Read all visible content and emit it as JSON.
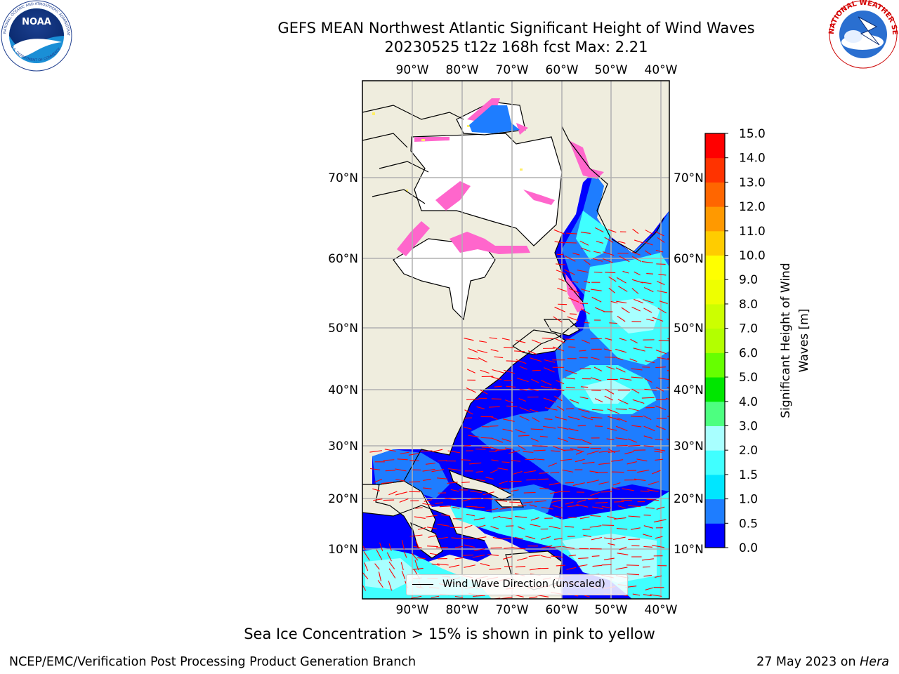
{
  "title": {
    "line1": "GEFS MEAN Northwest Atlantic Significant Height of Wind Waves",
    "line2": "20230525 t12z 168h fcst   Max: 2.21"
  },
  "logos": {
    "left": "noaa-logo",
    "right": "national-weather-service-logo",
    "left_text": [
      "NOAA",
      "NATIONAL OCEANIC AND ATMOSPHERIC ADMINISTRATION",
      "U.S. DEPARTMENT OF COMMERCE"
    ],
    "right_text": [
      "NATIONAL WEATHER SERVICE"
    ]
  },
  "map": {
    "lon_labels": [
      "90°W",
      "80°W",
      "70°W",
      "60°W",
      "50°W",
      "40°W"
    ],
    "lat_labels": [
      "70°N",
      "60°N",
      "50°N",
      "40°N",
      "30°N",
      "20°N",
      "10°N"
    ],
    "legend_label": "Wind Wave Direction (unscaled)",
    "colors": {
      "land": "#efedde",
      "ice_free_land_gaps": "#ffffff",
      "grid": "#b0b0b0",
      "arrow": "#ff0000"
    }
  },
  "colorbar": {
    "label": "Significant Height of Wind Waves [m]",
    "ticks": [
      "0.0",
      "0.5",
      "1.0",
      "1.5",
      "2.0",
      "3.0",
      "4.0",
      "5.0",
      "6.0",
      "7.0",
      "8.0",
      "9.0",
      "10.0",
      "11.0",
      "12.0",
      "13.0",
      "14.0",
      "15.0"
    ],
    "colors": [
      "#0000ff",
      "#1e7dff",
      "#00e6ff",
      "#40ffff",
      "#a8ffff",
      "#4dff80",
      "#00e600",
      "#66ff00",
      "#b3ff00",
      "#ccff00",
      "#eeff00",
      "#ffff00",
      "#ffcc00",
      "#ff9900",
      "#ff6600",
      "#ff3300",
      "#ff0000"
    ]
  },
  "footer": {
    "note": "Sea Ice Concentration > 15% is shown in pink to yellow",
    "credit_left": "NCEP/EMC/Verification Post Processing Product Generation Branch",
    "credit_right_date": "27 May 2023 on ",
    "credit_right_machine": "Hera"
  }
}
